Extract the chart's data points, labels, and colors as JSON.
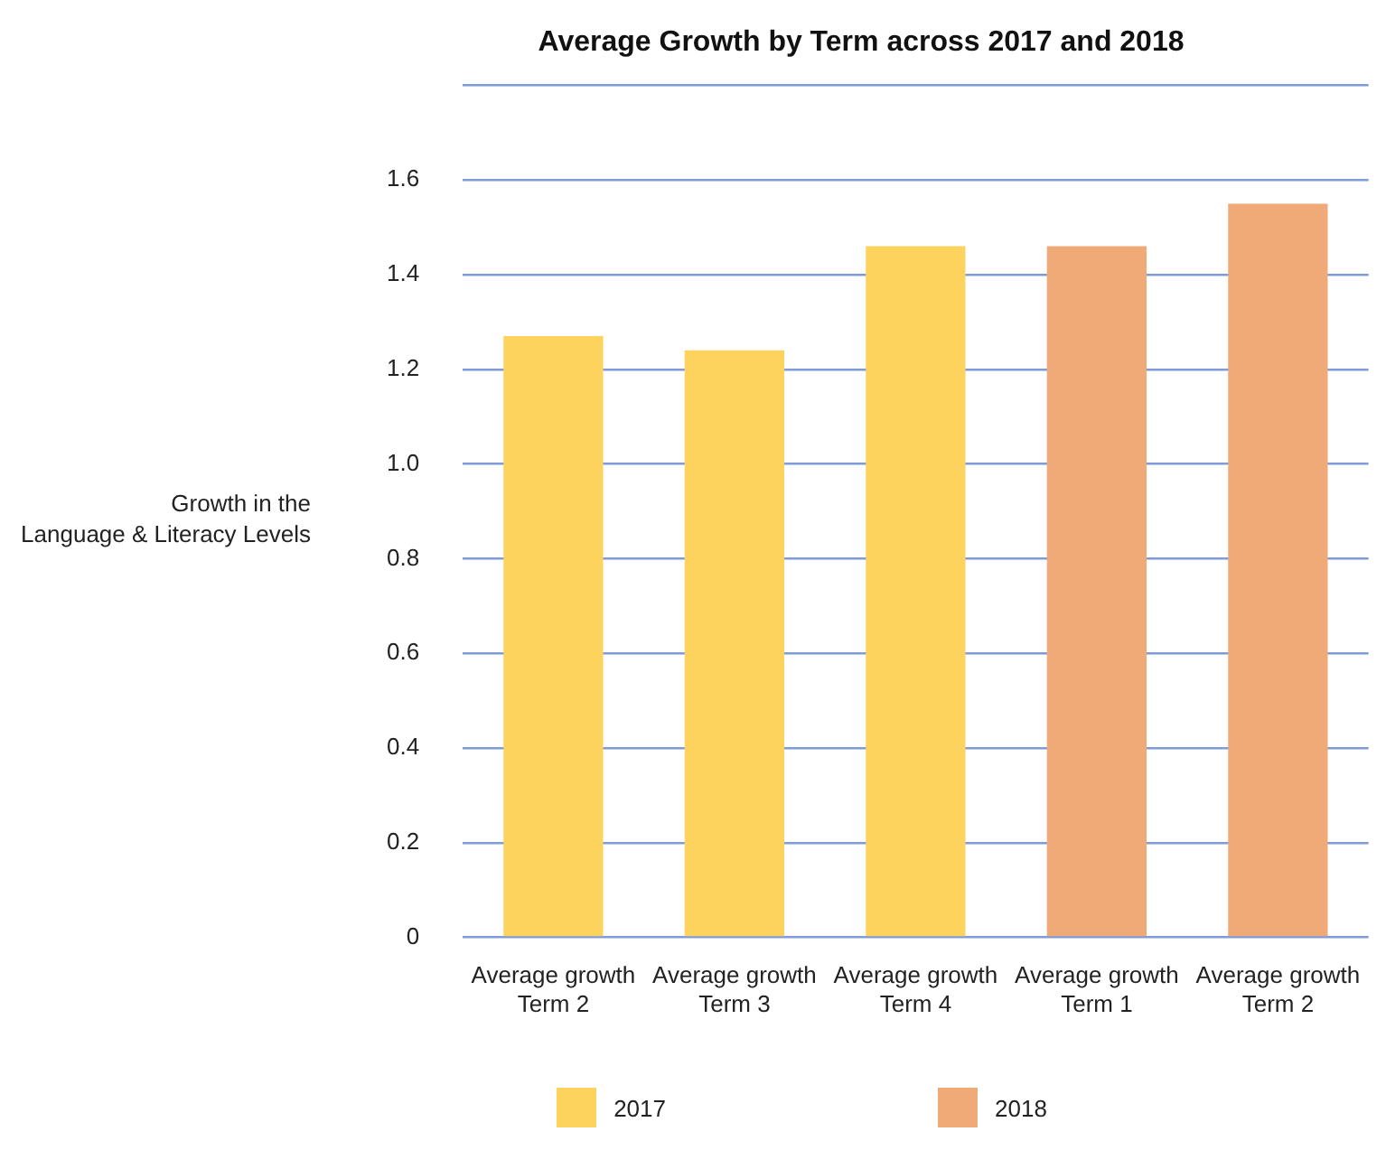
{
  "chart_data": {
    "type": "bar",
    "title": "Average Growth by Term across 2017 and 2018",
    "ylabel": "Growth in the Language & Literacy Levels",
    "categories": [
      "Average growth Term 2",
      "Average growth Term 3",
      "Average growth Term 4",
      "Average growth Term 1",
      "Average growth Term 2"
    ],
    "series": [
      {
        "name": "2017",
        "color": "#fdd35e",
        "values": [
          1.27,
          1.24,
          1.46,
          null,
          null
        ]
      },
      {
        "name": "2018",
        "color": "#efaa78",
        "values": [
          null,
          null,
          null,
          1.46,
          1.55
        ]
      }
    ],
    "ylim": [
      0,
      1.8
    ],
    "yticks": [
      0,
      0.2,
      0.4,
      0.6,
      0.8,
      {
        "value": 1.0,
        "label": "1.0"
      },
      1.2,
      1.4,
      1.6,
      {
        "value": 1.8,
        "label": null
      }
    ],
    "grid": "y",
    "legend": "bottom"
  }
}
